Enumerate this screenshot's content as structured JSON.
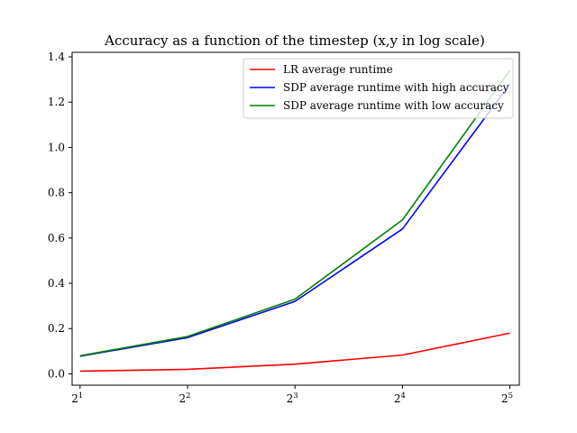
{
  "chart_data": {
    "type": "line",
    "title": "Accuracy as a function of the timestep (x,y in log scale)",
    "xlabel": "",
    "ylabel": "",
    "x": [
      2,
      4,
      8,
      16,
      32
    ],
    "x_tick_labels": [
      {
        "base": "2",
        "exp": "1"
      },
      {
        "base": "2",
        "exp": "2"
      },
      {
        "base": "2",
        "exp": "3"
      },
      {
        "base": "2",
        "exp": "4"
      },
      {
        "base": "2",
        "exp": "5"
      }
    ],
    "x_scale": "log2",
    "xlim": [
      1.9,
      34
    ],
    "ylim": [
      -0.05,
      1.42
    ],
    "y_ticks": [
      0.0,
      0.2,
      0.4,
      0.6,
      0.8,
      1.0,
      1.2,
      1.4
    ],
    "y_tick_labels": [
      "0.0",
      "0.2",
      "0.4",
      "0.6",
      "0.8",
      "1.0",
      "1.2",
      "1.4"
    ],
    "grid": false,
    "legend_position": "top-right",
    "series": [
      {
        "name": "LR average runtime",
        "color": "#ff0000",
        "values": [
          0.012,
          0.02,
          0.043,
          0.083,
          0.18
        ]
      },
      {
        "name": "SDP average runtime with high accuracy",
        "color": "#0000ff",
        "values": [
          0.078,
          0.16,
          0.32,
          0.64,
          1.28
        ]
      },
      {
        "name": "SDP average runtime with low accuracy",
        "color": "#008000",
        "values": [
          0.08,
          0.165,
          0.33,
          0.68,
          1.34
        ]
      }
    ]
  }
}
